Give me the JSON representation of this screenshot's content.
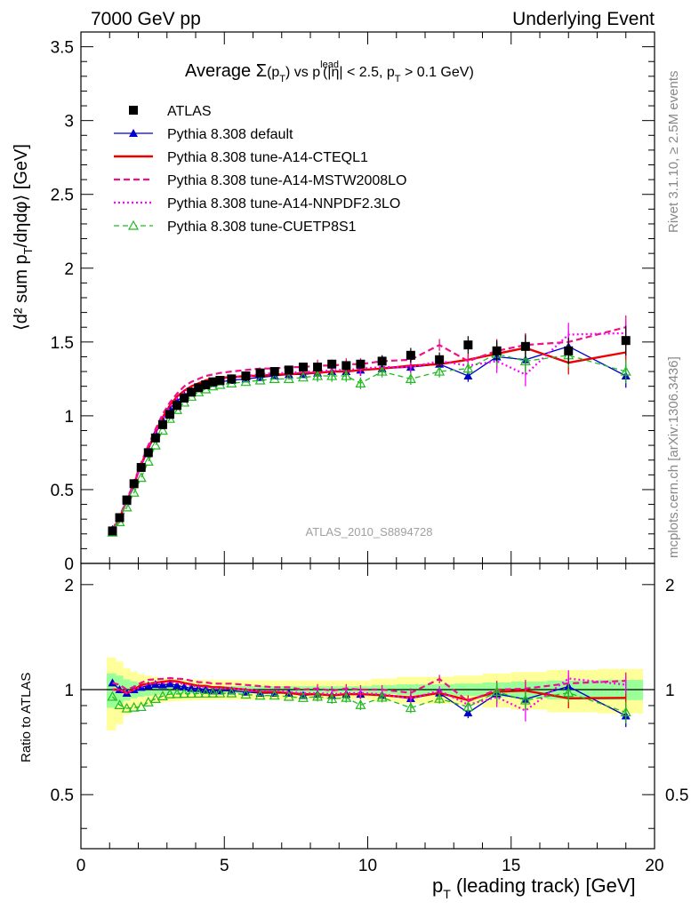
{
  "header": {
    "left": "7000 GeV pp",
    "right": "Underlying Event",
    "title_main": "Average ",
    "title_sigma": "Σ",
    "title_rest": "(p",
    "title_sub": "T",
    "title_close": ") vs p",
    "title_lead": "lead",
    "title_tail": "(|η| < 2.5, p",
    "title_tail2": " > 0.1 GeV)"
  },
  "side": {
    "rivet": "Rivet 3.1.10, ≥ 2.5M events",
    "mcplots": "mcplots.cern.ch [arXiv:1306.3436]"
  },
  "watermark": "ATLAS_2010_S8894728",
  "axes": {
    "ylabel_main": "⟨d² sum p",
    "ylabel_sub": "T",
    "ylabel_tail": "/dηdφ⟩ [GeV]",
    "ratio_ylabel": "Ratio to ATLAS",
    "xlabel_main": "p",
    "xlabel_sub": "T",
    "xlabel_tail": " (leading track) [GeV]"
  },
  "chart_data": {
    "type": "line",
    "xlim": [
      0,
      20
    ],
    "ylim": [
      0,
      3.6
    ],
    "ratio_ylim": [
      0.35,
      2.3
    ],
    "x_ticks": [
      "0",
      "5",
      "10",
      "15",
      "20"
    ],
    "y_ticks": [
      "0",
      "0.5",
      "1",
      "1.5",
      "2",
      "2.5",
      "3",
      "3.5"
    ],
    "ratio_ticks": [
      "0.5",
      "1",
      "2"
    ],
    "x": [
      1.1,
      1.35,
      1.6,
      1.85,
      2.1,
      2.35,
      2.6,
      2.85,
      3.1,
      3.35,
      3.6,
      3.85,
      4.1,
      4.35,
      4.6,
      4.85,
      5.25,
      5.75,
      6.25,
      6.75,
      7.25,
      7.75,
      8.25,
      8.75,
      9.25,
      9.75,
      10.5,
      11.5,
      12.5,
      13.5,
      14.5,
      15.5,
      17.0,
      19.0
    ],
    "series": [
      {
        "name": "ATLAS",
        "color": "#000000",
        "marker": "square",
        "values": [
          0.22,
          0.31,
          0.43,
          0.54,
          0.65,
          0.75,
          0.85,
          0.94,
          1.01,
          1.07,
          1.12,
          1.16,
          1.19,
          1.21,
          1.23,
          1.24,
          1.25,
          1.27,
          1.29,
          1.3,
          1.31,
          1.33,
          1.33,
          1.35,
          1.34,
          1.35,
          1.37,
          1.41,
          1.38,
          1.48,
          1.44,
          1.47,
          1.44,
          1.51
        ]
      },
      {
        "name": "Pythia 8.308 default",
        "color": "#0000cc",
        "marker": "triangle",
        "values": [
          0.23,
          0.31,
          0.42,
          0.54,
          0.66,
          0.77,
          0.88,
          0.97,
          1.05,
          1.1,
          1.14,
          1.17,
          1.2,
          1.21,
          1.22,
          1.23,
          1.24,
          1.25,
          1.26,
          1.27,
          1.28,
          1.28,
          1.29,
          1.3,
          1.3,
          1.31,
          1.32,
          1.33,
          1.35,
          1.27,
          1.4,
          1.38,
          1.47,
          1.27
        ]
      },
      {
        "name": "Pythia 8.308 tune-A14-CTEQL1",
        "color": "#ee0000",
        "marker": "none",
        "values": [
          0.22,
          0.31,
          0.42,
          0.54,
          0.67,
          0.78,
          0.89,
          0.99,
          1.07,
          1.13,
          1.17,
          1.2,
          1.22,
          1.24,
          1.25,
          1.26,
          1.26,
          1.27,
          1.27,
          1.28,
          1.28,
          1.29,
          1.29,
          1.3,
          1.3,
          1.31,
          1.32,
          1.34,
          1.35,
          1.38,
          1.42,
          1.46,
          1.36,
          1.43
        ]
      },
      {
        "name": "Pythia 8.308 tune-A14-MSTW2008LO",
        "color": "#ee1188",
        "marker": "none",
        "values": [
          0.23,
          0.32,
          0.43,
          0.55,
          0.68,
          0.8,
          0.91,
          1.01,
          1.09,
          1.15,
          1.2,
          1.23,
          1.25,
          1.27,
          1.28,
          1.29,
          1.3,
          1.31,
          1.32,
          1.32,
          1.33,
          1.33,
          1.34,
          1.34,
          1.35,
          1.35,
          1.37,
          1.38,
          1.48,
          1.37,
          1.44,
          1.48,
          1.5,
          1.6
        ]
      },
      {
        "name": "Pythia 8.308 tune-A14-NNPDF2.3LO",
        "color": "#ff00ff",
        "marker": "none",
        "values": [
          0.22,
          0.31,
          0.42,
          0.54,
          0.66,
          0.78,
          0.89,
          0.98,
          1.06,
          1.12,
          1.16,
          1.19,
          1.21,
          1.23,
          1.24,
          1.25,
          1.26,
          1.27,
          1.28,
          1.29,
          1.29,
          1.3,
          1.3,
          1.31,
          1.31,
          1.32,
          1.33,
          1.33,
          1.37,
          1.34,
          1.37,
          1.28,
          1.55,
          1.56
        ]
      },
      {
        "name": "Pythia 8.308 tune-CUETP8S1",
        "color": "#22bb22",
        "marker": "open-triangle",
        "values": [
          0.21,
          0.28,
          0.38,
          0.48,
          0.58,
          0.69,
          0.8,
          0.9,
          0.98,
          1.04,
          1.09,
          1.13,
          1.16,
          1.18,
          1.2,
          1.21,
          1.22,
          1.23,
          1.24,
          1.25,
          1.25,
          1.26,
          1.27,
          1.27,
          1.27,
          1.22,
          1.3,
          1.25,
          1.3,
          1.32,
          1.42,
          1.37,
          1.41,
          1.3
        ]
      }
    ],
    "ref_errors": [
      0.025,
      0.03,
      0.03,
      0.03,
      0.03,
      0.03,
      0.03,
      0.03,
      0.03,
      0.03,
      0.03,
      0.03,
      0.03,
      0.03,
      0.03,
      0.03,
      0.03,
      0.03,
      0.03,
      0.03,
      0.03,
      0.03,
      0.03,
      0.03,
      0.03,
      0.03,
      0.04,
      0.05,
      0.05,
      0.06,
      0.07,
      0.08,
      0.09,
      0.1
    ]
  }
}
